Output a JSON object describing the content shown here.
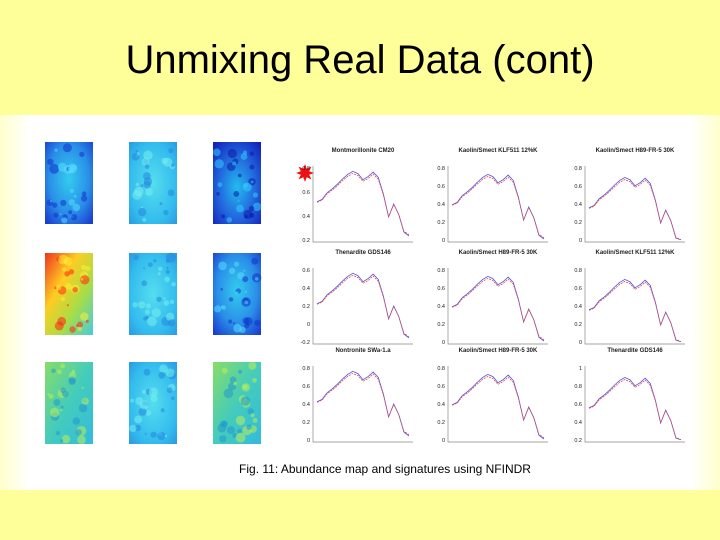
{
  "slide": {
    "title": "Unmixing Real Data (cont)",
    "caption": "Fig. 11: Abundance map and signatures using NFINDR"
  },
  "colors": {
    "band": "#ffff99",
    "spectrum_red": "#e05050",
    "spectrum_blue": "#5050e0",
    "marker": "#ee1111"
  },
  "abundance_maps": [
    {
      "id": "r1c1",
      "tone": "blue"
    },
    {
      "id": "r1c2",
      "tone": "cyan"
    },
    {
      "id": "r1c3",
      "tone": "deep-blue"
    },
    {
      "id": "r2c1",
      "tone": "red-yellow"
    },
    {
      "id": "r2c2",
      "tone": "cyan"
    },
    {
      "id": "r2c3",
      "tone": "blue"
    },
    {
      "id": "r3c1",
      "tone": "green-cyan"
    },
    {
      "id": "r3c2",
      "tone": "cyan"
    },
    {
      "id": "r3c3",
      "tone": "green-cyan"
    }
  ],
  "markers": [
    {
      "row": 0,
      "label": "star-icon"
    },
    {
      "row": 2,
      "label": "star-icon"
    }
  ],
  "plots": [
    {
      "title": "Montmorillonite CM20",
      "ticks": [
        "0.8",
        "0.6",
        "0.4",
        "0.2"
      ]
    },
    {
      "title": "Kaolin/Smect KLF511 12%K",
      "ticks": [
        "0.8",
        "0.6",
        "0.4",
        "0.2",
        "0"
      ]
    },
    {
      "title": "Kaolin/Smect H89-FR-5 30K",
      "ticks": [
        "0.8",
        "0.6",
        "0.4",
        "0.2",
        "0"
      ]
    },
    {
      "title": "Thenardite GDS146",
      "ticks": [
        "0.6",
        "0.4",
        "0.2",
        "0",
        "-0.2"
      ]
    },
    {
      "title": "Kaolin/Smect H89-FR-5 30K",
      "ticks": [
        "0.8",
        "0.6",
        "0.4",
        "0.2",
        "0"
      ]
    },
    {
      "title": "Kaolin/Smect KLF511 12%K",
      "ticks": [
        "0.8",
        "0.6",
        "0.4",
        "0.2",
        "0"
      ]
    },
    {
      "title": "Nontronite SWa-1.a",
      "ticks": [
        "0.8",
        "0.6",
        "0.4",
        "0.2",
        "0"
      ]
    },
    {
      "title": "Kaolin/Smect H89-FR-5 30K",
      "ticks": [
        "0.8",
        "0.6",
        "0.4",
        "0.2",
        "0"
      ]
    },
    {
      "title": "Thenardite GDS146",
      "ticks": [
        "1",
        "0.8",
        "0.6",
        "0.4",
        "0.2"
      ]
    }
  ]
}
